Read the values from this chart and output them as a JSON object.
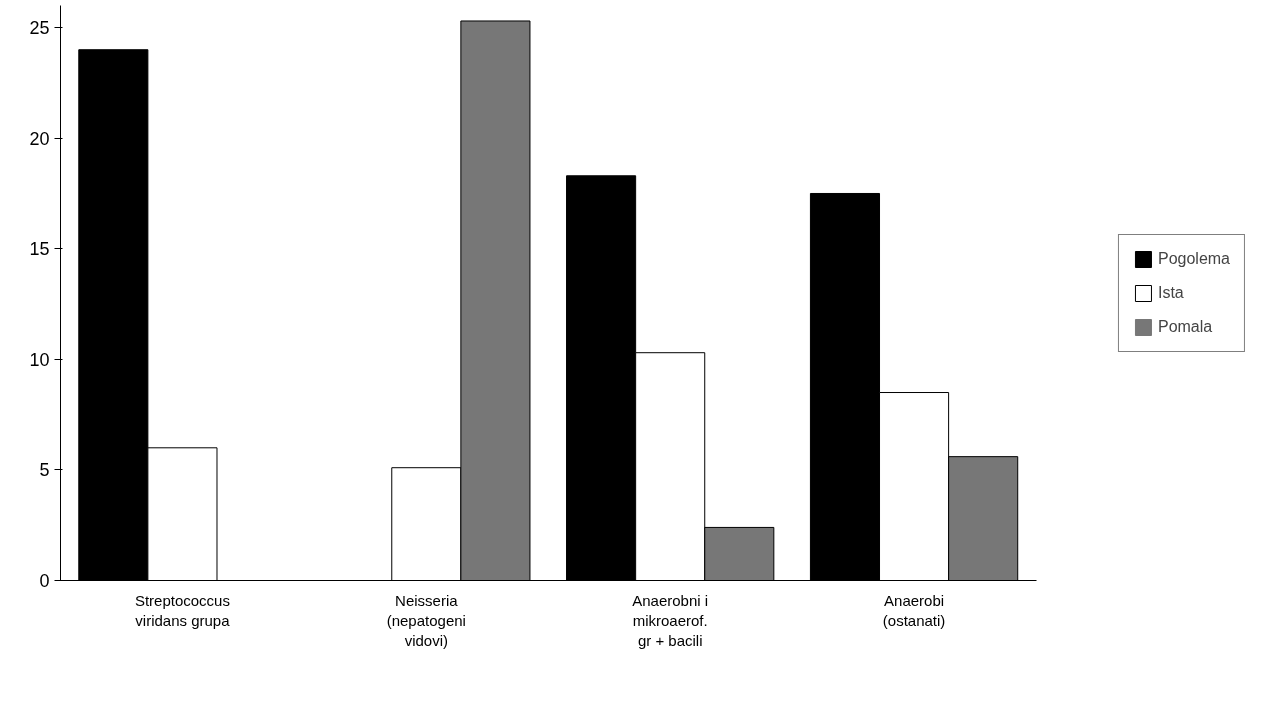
{
  "chart_data": {
    "type": "bar",
    "categories": [
      "Streptococcus\nviridans grupa",
      "Neisseria\n(nepatogeni\nvidovi)",
      "Anaerobni i\nmikroaerof.\ngr + bacili",
      "Anaerobi\n(ostanati)"
    ],
    "series": [
      {
        "name": "Pogolema",
        "color": "#000000",
        "values": [
          24.0,
          0,
          18.3,
          17.5
        ]
      },
      {
        "name": "Ista",
        "color": "#ffffff",
        "values": [
          6.0,
          5.1,
          10.3,
          8.5
        ]
      },
      {
        "name": "Pomala",
        "color": "#777777",
        "values": [
          0,
          25.3,
          2.4,
          5.6
        ]
      }
    ],
    "ylim": [
      0,
      26
    ],
    "yticks": [
      0,
      5,
      10,
      15,
      20,
      25
    ],
    "grid": false,
    "legend": "right"
  }
}
